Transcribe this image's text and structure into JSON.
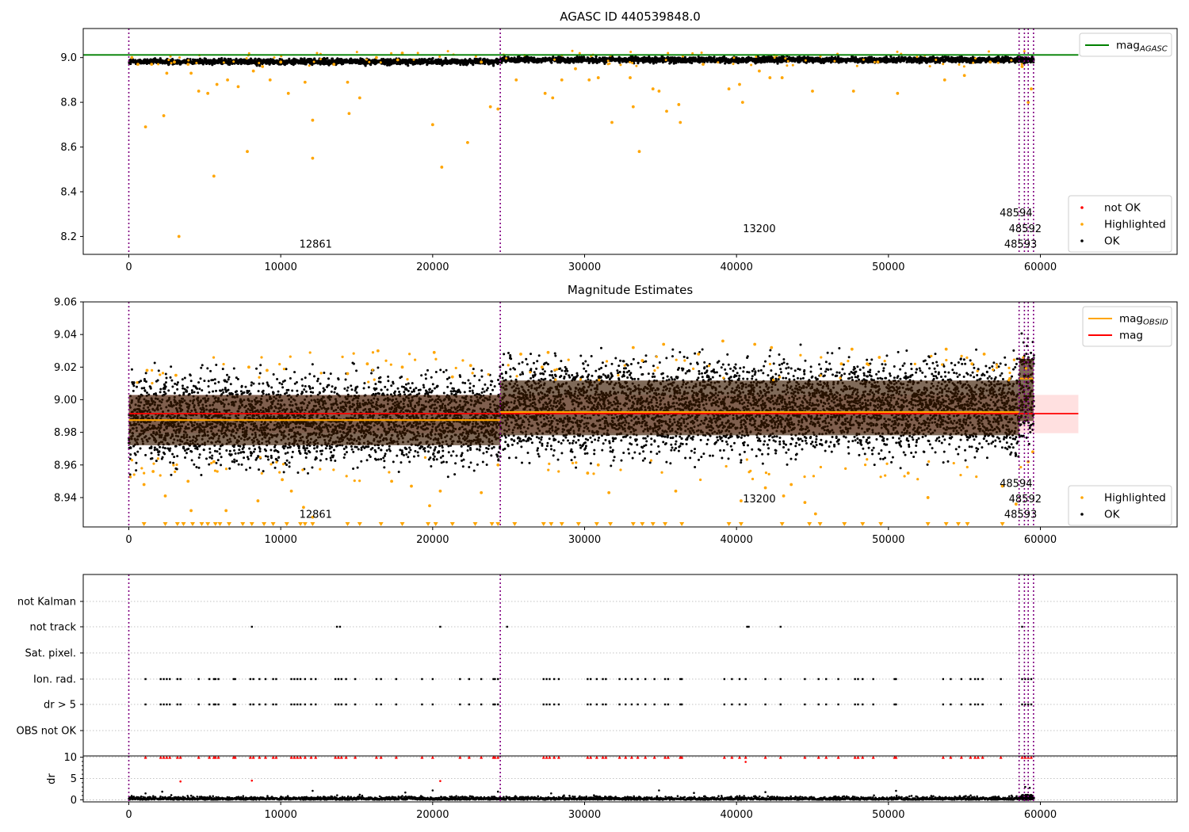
{
  "chart_data": [
    {
      "type": "scatter",
      "title": "AGASC ID 440539848.0",
      "xlim": [
        -3000,
        69000
      ],
      "ylim": [
        8.12,
        9.13
      ],
      "xticks": [
        "0",
        "10000",
        "20000",
        "30000",
        "40000",
        "50000",
        "60000"
      ],
      "yticks": [
        "9.0",
        "8.8",
        "8.6",
        "8.4",
        "8.2"
      ],
      "ytick_values": [
        9.0,
        8.8,
        8.6,
        8.4,
        8.2
      ],
      "reference_line": {
        "name": "mag",
        "subscript": "AGASC",
        "value": 9.012,
        "color": "#008000"
      },
      "ok_band": {
        "center": 8.99,
        "halfwidth": 0.03
      },
      "highlighted_points": [
        [
          200,
          9.0
        ],
        [
          600,
          8.97
        ],
        [
          1100,
          8.69
        ],
        [
          1500,
          8.97
        ],
        [
          2300,
          8.74
        ],
        [
          2500,
          8.93
        ],
        [
          3000,
          8.98
        ],
        [
          3300,
          8.2
        ],
        [
          3900,
          8.97
        ],
        [
          4100,
          8.93
        ],
        [
          4600,
          8.85
        ],
        [
          5200,
          8.84
        ],
        [
          5600,
          8.47
        ],
        [
          5800,
          8.88
        ],
        [
          6500,
          8.9
        ],
        [
          7200,
          8.87
        ],
        [
          7800,
          8.58
        ],
        [
          8200,
          8.94
        ],
        [
          8800,
          8.96
        ],
        [
          9300,
          8.9
        ],
        [
          10000,
          8.98
        ],
        [
          10500,
          8.84
        ],
        [
          11600,
          8.89
        ],
        [
          12100,
          8.72
        ],
        [
          12100,
          8.55
        ],
        [
          13500,
          8.97
        ],
        [
          14400,
          8.89
        ],
        [
          14500,
          8.75
        ],
        [
          15200,
          8.82
        ],
        [
          16300,
          9.0
        ],
        [
          17700,
          8.99
        ],
        [
          18000,
          9.02
        ],
        [
          20000,
          8.7
        ],
        [
          20600,
          8.51
        ],
        [
          22300,
          8.62
        ],
        [
          23200,
          8.98
        ],
        [
          23800,
          8.78
        ],
        [
          24300,
          8.77
        ],
        [
          25500,
          8.9
        ],
        [
          27400,
          8.84
        ],
        [
          27900,
          8.82
        ],
        [
          28500,
          8.9
        ],
        [
          29400,
          8.95
        ],
        [
          30300,
          8.9
        ],
        [
          30900,
          8.91
        ],
        [
          31800,
          8.71
        ],
        [
          33000,
          8.91
        ],
        [
          33200,
          8.78
        ],
        [
          33600,
          8.58
        ],
        [
          34500,
          8.86
        ],
        [
          34900,
          8.85
        ],
        [
          35400,
          8.76
        ],
        [
          36200,
          8.79
        ],
        [
          36300,
          8.71
        ],
        [
          37800,
          8.97
        ],
        [
          39500,
          8.86
        ],
        [
          40200,
          8.88
        ],
        [
          40400,
          8.8
        ],
        [
          41500,
          8.94
        ],
        [
          42200,
          8.91
        ],
        [
          43000,
          8.91
        ],
        [
          45000,
          8.85
        ],
        [
          47700,
          8.85
        ],
        [
          49300,
          8.98
        ],
        [
          50600,
          8.84
        ],
        [
          53700,
          8.9
        ],
        [
          55000,
          8.92
        ],
        [
          56700,
          8.98
        ],
        [
          58800,
          8.96
        ],
        [
          59200,
          8.8
        ],
        [
          59400,
          8.86
        ]
      ],
      "vlines": [
        0,
        24450,
        58600,
        58950,
        59200,
        59550
      ],
      "annotations": [
        {
          "text": "12861",
          "x": 12300,
          "y": 8.15
        },
        {
          "text": "13200",
          "x": 41500,
          "y": 8.22
        },
        {
          "text": "48594",
          "x": 58400,
          "y": 8.29
        },
        {
          "text": "48592",
          "x": 59000,
          "y": 8.22
        },
        {
          "text": "48593",
          "x": 58700,
          "y": 8.15
        }
      ],
      "legends": [
        {
          "entries": [
            {
              "label": "mag",
              "subscript": "AGASC",
              "marker": "line",
              "color": "#008000"
            }
          ]
        },
        {
          "entries": [
            {
              "label": "not OK",
              "marker": "dot",
              "color": "#ff0000"
            },
            {
              "label": "Highlighted",
              "marker": "dot",
              "color": "#ffa500"
            },
            {
              "label": "OK",
              "marker": "dot",
              "color": "#000000"
            }
          ]
        }
      ]
    },
    {
      "type": "scatter",
      "title": "Magnitude Estimates",
      "xlim": [
        -3000,
        69000
      ],
      "ylim": [
        8.922,
        9.06
      ],
      "xticks": [
        "0",
        "10000",
        "20000",
        "30000",
        "40000",
        "50000",
        "60000"
      ],
      "yticks": [
        "9.06",
        "9.04",
        "9.02",
        "9.00",
        "8.98",
        "8.96",
        "8.94"
      ],
      "ytick_values": [
        9.06,
        9.04,
        9.02,
        9.0,
        8.98,
        8.96,
        8.94
      ],
      "mag_line": {
        "name": "mag",
        "value": 8.9915,
        "band": [
          8.9795,
          9.003
        ],
        "color": "#ff0000"
      },
      "obsid_segments": [
        {
          "x0": 0,
          "x1": 24450,
          "value": 8.9875
        },
        {
          "x0": 24450,
          "x1": 58600,
          "value": 8.9925
        },
        {
          "x0": 58600,
          "x1": 59550,
          "value": 9.013
        }
      ],
      "cloud_segments": [
        {
          "x0": 0,
          "x1": 24450,
          "lo": 8.96,
          "hi": 9.015
        },
        {
          "x0": 24450,
          "x1": 58600,
          "lo": 8.965,
          "hi": 9.025
        },
        {
          "x0": 58600,
          "x1": 59550,
          "lo": 8.972,
          "hi": 9.04
        }
      ],
      "highlighted_points": [
        [
          1000,
          8.948
        ],
        [
          1200,
          9.018
        ],
        [
          1600,
          8.956
        ],
        [
          2400,
          8.941
        ],
        [
          3100,
          9.015
        ],
        [
          3900,
          8.95
        ],
        [
          4100,
          8.932
        ],
        [
          5600,
          8.962
        ],
        [
          6400,
          8.932
        ],
        [
          7900,
          9.02
        ],
        [
          8500,
          8.938
        ],
        [
          9100,
          9.018
        ],
        [
          10100,
          8.951
        ],
        [
          10700,
          8.944
        ],
        [
          11500,
          8.934
        ],
        [
          12100,
          8.928
        ],
        [
          14400,
          9.016
        ],
        [
          15700,
          9.022
        ],
        [
          16400,
          9.03
        ],
        [
          17300,
          8.95
        ],
        [
          18000,
          9.02
        ],
        [
          18600,
          8.947
        ],
        [
          19800,
          8.935
        ],
        [
          20100,
          9.029
        ],
        [
          20500,
          8.944
        ],
        [
          21300,
          9.014
        ],
        [
          22500,
          9.021
        ],
        [
          23200,
          8.943
        ],
        [
          24300,
          8.96
        ],
        [
          25800,
          9.028
        ],
        [
          27200,
          9.02
        ],
        [
          27600,
          9.029
        ],
        [
          30200,
          8.955
        ],
        [
          30900,
          8.96
        ],
        [
          31600,
          8.943
        ],
        [
          33200,
          9.032
        ],
        [
          33800,
          9.024
        ],
        [
          35200,
          9.034
        ],
        [
          36000,
          8.944
        ],
        [
          37500,
          9.028
        ],
        [
          39100,
          9.036
        ],
        [
          40300,
          8.938
        ],
        [
          41200,
          9.034
        ],
        [
          41900,
          8.946
        ],
        [
          42300,
          9.032
        ],
        [
          43100,
          8.941
        ],
        [
          43600,
          8.948
        ],
        [
          44500,
          8.937
        ],
        [
          45200,
          8.93
        ],
        [
          46900,
          9.022
        ],
        [
          47600,
          9.031
        ],
        [
          48600,
          9.022
        ],
        [
          49400,
          9.026
        ],
        [
          51300,
          8.955
        ],
        [
          52600,
          8.94
        ],
        [
          53800,
          9.031
        ],
        [
          55500,
          9.022
        ],
        [
          56300,
          9.028
        ],
        [
          57500,
          8.947
        ],
        [
          58400,
          8.936
        ],
        [
          59200,
          8.962
        ],
        [
          59500,
          8.968
        ]
      ],
      "lower_limit_marks": [
        1000,
        2400,
        3200,
        3600,
        4200,
        4800,
        5200,
        5700,
        6000,
        6600,
        7500,
        8100,
        8900,
        9500,
        10400,
        11300,
        11600,
        12100,
        14400,
        15200,
        16600,
        18000,
        19700,
        20200,
        21300,
        22800,
        23900,
        24300,
        25400,
        27300,
        27800,
        28500,
        29600,
        30800,
        31700,
        33200,
        33800,
        34500,
        35300,
        36400,
        39500,
        40300,
        43000,
        44800,
        45500,
        47100,
        48300,
        49500,
        52600,
        53800,
        54600,
        55200,
        57500
      ],
      "vlines": [
        0,
        24450,
        58600,
        58950,
        59200,
        59550
      ],
      "annotations": [
        {
          "text": "12861",
          "x": 12300,
          "y": 8.9275
        },
        {
          "text": "13200",
          "x": 41500,
          "y": 8.937
        },
        {
          "text": "48594",
          "x": 58400,
          "y": 8.9465
        },
        {
          "text": "48592",
          "x": 59000,
          "y": 8.937
        },
        {
          "text": "48593",
          "x": 58700,
          "y": 8.9275
        }
      ],
      "legends": [
        {
          "entries": [
            {
              "label": "mag",
              "subscript": "OBSID",
              "marker": "line",
              "color": "#ffa500"
            },
            {
              "label": "mag",
              "marker": "line",
              "color": "#ff0000"
            }
          ]
        },
        {
          "entries": [
            {
              "label": "Highlighted",
              "marker": "dot",
              "color": "#ffa500"
            },
            {
              "label": "OK",
              "marker": "dot",
              "color": "#000000"
            }
          ]
        }
      ]
    },
    {
      "type": "scatter",
      "title": "",
      "xlim": [
        -3000,
        69000
      ],
      "categories": [
        "not Kalman",
        "not track",
        "Sat. pixel.",
        "Ion. rad.",
        "dr > 5",
        "OBS not OK"
      ],
      "flag_points": {
        "not track": [
          8100,
          13700,
          13900,
          20500,
          24900,
          40700,
          40800,
          42900,
          58800
        ],
        "Ion. rad.": [
          1100,
          2100,
          2300,
          2500,
          2700,
          3200,
          3400,
          4600,
          5300,
          5600,
          5700,
          5900,
          6900,
          7000,
          8000,
          8200,
          8600,
          9000,
          9500,
          9700,
          10700,
          10900,
          11100,
          11300,
          11600,
          12000,
          12300,
          13600,
          13800,
          14000,
          14300,
          14900,
          16300,
          16600,
          17600,
          19300,
          20000,
          21800,
          22400,
          23200,
          24000,
          24100,
          24300,
          27300,
          27500,
          27700,
          28000,
          28300,
          30200,
          30400,
          30800,
          31200,
          31400,
          32300,
          32700,
          33100,
          33500,
          34000,
          34600,
          35300,
          35500,
          36300,
          36400,
          39200,
          39700,
          40200,
          40600,
          41900,
          42900,
          44500,
          45400,
          45900,
          46700,
          47800,
          48000,
          48300,
          49000,
          50400,
          50500,
          53600,
          54100,
          54800,
          55400,
          55700,
          55900,
          56200,
          57400,
          58800,
          59000,
          59200,
          59400
        ],
        "dr > 5": [
          1100,
          2100,
          2300,
          2500,
          2700,
          3200,
          3400,
          4600,
          5300,
          5600,
          5700,
          5900,
          6900,
          7000,
          8000,
          8200,
          8600,
          9000,
          9500,
          9700,
          10700,
          10900,
          11100,
          11300,
          11600,
          12000,
          12300,
          13600,
          13800,
          14000,
          14300,
          14900,
          16300,
          16600,
          17600,
          19300,
          20000,
          21800,
          22400,
          23200,
          24000,
          24100,
          24300,
          27300,
          27500,
          27700,
          28000,
          28300,
          30200,
          30400,
          30800,
          31200,
          31400,
          32300,
          32700,
          33100,
          33500,
          34000,
          34600,
          35300,
          35500,
          36300,
          36400,
          39200,
          39700,
          40200,
          40600,
          41900,
          42900,
          44500,
          45400,
          45900,
          46700,
          47800,
          48000,
          48300,
          49000,
          50400,
          50500,
          53600,
          54100,
          54800,
          55400,
          55700,
          55900,
          56200,
          57400,
          58800,
          59000,
          59200,
          59400
        ]
      },
      "vlines": [
        0,
        24450,
        58600,
        58950,
        59200,
        59550
      ]
    },
    {
      "type": "scatter",
      "title": "",
      "xlim": [
        -3000,
        69000
      ],
      "ylim": [
        -0.5,
        10.3
      ],
      "xticks": [
        "0",
        "10000",
        "20000",
        "30000",
        "40000",
        "50000",
        "60000"
      ],
      "yticks": [
        "10",
        "5",
        "0"
      ],
      "ytick_values": [
        10,
        5,
        0
      ],
      "ylabel": "dr",
      "clipped_marks_at": 10,
      "scattered_points": [
        [
          1100,
          1.5
        ],
        [
          2200,
          1.9
        ],
        [
          3400,
          4.3
        ],
        [
          8100,
          4.5
        ],
        [
          12100,
          2.1
        ],
        [
          15200,
          1.2
        ],
        [
          18200,
          1.7
        ],
        [
          20000,
          2.2
        ],
        [
          20500,
          4.4
        ],
        [
          24300,
          1.9
        ],
        [
          27800,
          1.5
        ],
        [
          34900,
          2.2
        ],
        [
          37200,
          1.6
        ],
        [
          40600,
          8.9
        ],
        [
          41900,
          1.8
        ],
        [
          50500,
          2.1
        ],
        [
          59000,
          3.0
        ],
        [
          59300,
          2.8
        ]
      ],
      "vlines": [
        0,
        24450,
        58600,
        58950,
        59200,
        59550
      ]
    }
  ]
}
